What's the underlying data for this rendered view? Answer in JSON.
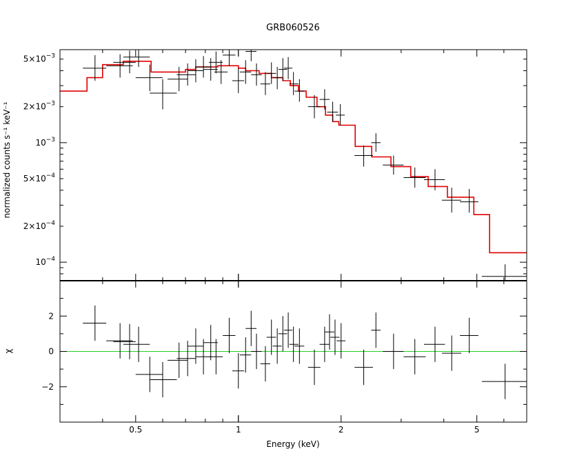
{
  "chart_data": [
    {
      "id": "spectrum",
      "type": "scatter",
      "title": "GRB060526",
      "xlabel": "",
      "ylabel": "normalized counts s⁻¹ keV⁻¹",
      "x_scale": "log",
      "y_scale": "log",
      "xlim": [
        0.3,
        7
      ],
      "ylim": [
        7e-05,
        0.006
      ],
      "y_ticks": [
        {
          "value": 0.005,
          "mant": "5×10",
          "exp": "−3"
        },
        {
          "value": 0.002,
          "mant": "2×10",
          "exp": "−3"
        },
        {
          "value": 0.001,
          "mant": "10",
          "exp": "−3"
        },
        {
          "value": 0.0005,
          "mant": "5×10",
          "exp": "−4"
        },
        {
          "value": 0.0002,
          "mant": "2×10",
          "exp": "−4"
        },
        {
          "value": 0.0001,
          "mant": "10",
          "exp": "−4"
        }
      ],
      "data": [
        {
          "x": 0.38,
          "xlo": 0.35,
          "xhi": 0.41,
          "y": 0.0042,
          "ylo": 0.0033,
          "yhi": 0.0054
        },
        {
          "x": 0.45,
          "xlo": 0.41,
          "xhi": 0.49,
          "y": 0.0044,
          "ylo": 0.0035,
          "yhi": 0.0055
        },
        {
          "x": 0.48,
          "xlo": 0.43,
          "xhi": 0.5,
          "y": 0.0047,
          "ylo": 0.0038,
          "yhi": 0.0059
        },
        {
          "x": 0.51,
          "xlo": 0.46,
          "xhi": 0.55,
          "y": 0.0052,
          "ylo": 0.0043,
          "yhi": 0.0063
        },
        {
          "x": 0.55,
          "xlo": 0.5,
          "xhi": 0.6,
          "y": 0.0035,
          "ylo": 0.0027,
          "yhi": 0.0045
        },
        {
          "x": 0.6,
          "xlo": 0.55,
          "xhi": 0.66,
          "y": 0.0026,
          "ylo": 0.0019,
          "yhi": 0.0034
        },
        {
          "x": 0.67,
          "xlo": 0.62,
          "xhi": 0.71,
          "y": 0.0034,
          "ylo": 0.0027,
          "yhi": 0.0043
        },
        {
          "x": 0.71,
          "xlo": 0.66,
          "xhi": 0.75,
          "y": 0.0037,
          "ylo": 0.003,
          "yhi": 0.0046
        },
        {
          "x": 0.75,
          "xlo": 0.71,
          "xhi": 0.79,
          "y": 0.004,
          "ylo": 0.0032,
          "yhi": 0.005
        },
        {
          "x": 0.79,
          "xlo": 0.75,
          "xhi": 0.83,
          "y": 0.0043,
          "ylo": 0.0035,
          "yhi": 0.0053
        },
        {
          "x": 0.83,
          "xlo": 0.79,
          "xhi": 0.87,
          "y": 0.0041,
          "ylo": 0.0033,
          "yhi": 0.0051
        },
        {
          "x": 0.86,
          "xlo": 0.82,
          "xhi": 0.9,
          "y": 0.0047,
          "ylo": 0.0038,
          "yhi": 0.0058
        },
        {
          "x": 0.89,
          "xlo": 0.85,
          "xhi": 0.93,
          "y": 0.0039,
          "ylo": 0.0031,
          "yhi": 0.0049
        },
        {
          "x": 0.94,
          "xlo": 0.9,
          "xhi": 0.98,
          "y": 0.0054,
          "ylo": 0.0044,
          "yhi": 0.0066
        },
        {
          "x": 1.0,
          "xlo": 0.96,
          "xhi": 1.04,
          "y": 0.0033,
          "ylo": 0.0026,
          "yhi": 0.0042
        },
        {
          "x": 1.05,
          "xlo": 1.01,
          "xhi": 1.09,
          "y": 0.0039,
          "ylo": 0.0031,
          "yhi": 0.0049
        },
        {
          "x": 1.09,
          "xlo": 1.05,
          "xhi": 1.13,
          "y": 0.0058,
          "ylo": 0.0048,
          "yhi": 0.0069
        },
        {
          "x": 1.13,
          "xlo": 1.09,
          "xhi": 1.17,
          "y": 0.0037,
          "ylo": 0.003,
          "yhi": 0.0046
        },
        {
          "x": 1.2,
          "xlo": 1.16,
          "xhi": 1.24,
          "y": 0.0031,
          "ylo": 0.0025,
          "yhi": 0.0039
        },
        {
          "x": 1.25,
          "xlo": 1.21,
          "xhi": 1.29,
          "y": 0.0038,
          "ylo": 0.0031,
          "yhi": 0.0047
        },
        {
          "x": 1.3,
          "xlo": 1.26,
          "xhi": 1.34,
          "y": 0.0035,
          "ylo": 0.0028,
          "yhi": 0.0043
        },
        {
          "x": 1.35,
          "xlo": 1.31,
          "xhi": 1.39,
          "y": 0.0041,
          "ylo": 0.0033,
          "yhi": 0.0051
        },
        {
          "x": 1.4,
          "xlo": 1.36,
          "xhi": 1.44,
          "y": 0.0042,
          "ylo": 0.0034,
          "yhi": 0.0052
        },
        {
          "x": 1.45,
          "xlo": 1.41,
          "xhi": 1.5,
          "y": 0.0031,
          "ylo": 0.0025,
          "yhi": 0.0039
        },
        {
          "x": 1.51,
          "xlo": 1.46,
          "xhi": 1.56,
          "y": 0.0027,
          "ylo": 0.0022,
          "yhi": 0.0034
        },
        {
          "x": 1.67,
          "xlo": 1.6,
          "xhi": 1.74,
          "y": 0.002,
          "ylo": 0.0016,
          "yhi": 0.0025
        },
        {
          "x": 1.79,
          "xlo": 1.73,
          "xhi": 1.85,
          "y": 0.0023,
          "ylo": 0.0019,
          "yhi": 0.0028
        },
        {
          "x": 1.89,
          "xlo": 1.82,
          "xhi": 1.96,
          "y": 0.0018,
          "ylo": 0.0015,
          "yhi": 0.0022
        },
        {
          "x": 1.99,
          "xlo": 1.93,
          "xhi": 2.05,
          "y": 0.0017,
          "ylo": 0.0014,
          "yhi": 0.0021
        },
        {
          "x": 2.33,
          "xlo": 2.19,
          "xhi": 2.48,
          "y": 0.00078,
          "ylo": 0.00063,
          "yhi": 0.00095
        },
        {
          "x": 2.53,
          "xlo": 2.45,
          "xhi": 2.61,
          "y": 0.001,
          "ylo": 0.00084,
          "yhi": 0.0012
        },
        {
          "x": 2.85,
          "xlo": 2.65,
          "xhi": 3.05,
          "y": 0.00065,
          "ylo": 0.00054,
          "yhi": 0.00078
        },
        {
          "x": 3.29,
          "xlo": 3.05,
          "xhi": 3.54,
          "y": 0.00051,
          "ylo": 0.00042,
          "yhi": 0.00062
        },
        {
          "x": 3.77,
          "xlo": 3.5,
          "xhi": 4.03,
          "y": 0.00049,
          "ylo": 0.0004,
          "yhi": 0.0006
        },
        {
          "x": 4.22,
          "xlo": 3.95,
          "xhi": 4.5,
          "y": 0.00033,
          "ylo": 0.00026,
          "yhi": 0.00042
        },
        {
          "x": 4.75,
          "xlo": 4.46,
          "xhi": 5.05,
          "y": 0.00032,
          "ylo": 0.00026,
          "yhi": 0.00041
        },
        {
          "x": 6.05,
          "xlo": 5.17,
          "xhi": 7.0,
          "y": 7.6e-05,
          "ylo": 6e-05,
          "yhi": 9.6e-05
        }
      ],
      "model_color": "#e00000",
      "model_steps": [
        {
          "x0": 0.3,
          "x1": 0.36,
          "y": 0.0027
        },
        {
          "x0": 0.36,
          "x1": 0.4,
          "y": 0.0035
        },
        {
          "x0": 0.4,
          "x1": 0.46,
          "y": 0.0045
        },
        {
          "x0": 0.46,
          "x1": 0.555,
          "y": 0.0048
        },
        {
          "x0": 0.555,
          "x1": 0.7,
          "y": 0.0039
        },
        {
          "x0": 0.7,
          "x1": 0.75,
          "y": 0.0041
        },
        {
          "x0": 0.75,
          "x1": 0.87,
          "y": 0.0043
        },
        {
          "x0": 0.87,
          "x1": 1.0,
          "y": 0.0044
        },
        {
          "x0": 1.0,
          "x1": 1.05,
          "y": 0.0042
        },
        {
          "x0": 1.05,
          "x1": 1.15,
          "y": 0.004
        },
        {
          "x0": 1.15,
          "x1": 1.25,
          "y": 0.0038
        },
        {
          "x0": 1.25,
          "x1": 1.35,
          "y": 0.0035
        },
        {
          "x0": 1.35,
          "x1": 1.42,
          "y": 0.0033
        },
        {
          "x0": 1.42,
          "x1": 1.5,
          "y": 0.003
        },
        {
          "x0": 1.5,
          "x1": 1.58,
          "y": 0.0027
        },
        {
          "x0": 1.58,
          "x1": 1.7,
          "y": 0.0024
        },
        {
          "x0": 1.7,
          "x1": 1.8,
          "y": 0.002
        },
        {
          "x0": 1.8,
          "x1": 1.89,
          "y": 0.0017
        },
        {
          "x0": 1.89,
          "x1": 1.97,
          "y": 0.0015
        },
        {
          "x0": 1.97,
          "x1": 2.2,
          "y": 0.0014
        },
        {
          "x0": 2.2,
          "x1": 2.46,
          "y": 0.00093
        },
        {
          "x0": 2.46,
          "x1": 2.8,
          "y": 0.00076
        },
        {
          "x0": 2.8,
          "x1": 3.2,
          "y": 0.00063
        },
        {
          "x0": 3.2,
          "x1": 3.6,
          "y": 0.00052
        },
        {
          "x0": 3.6,
          "x1": 4.1,
          "y": 0.00043
        },
        {
          "x0": 4.1,
          "x1": 4.9,
          "y": 0.00035
        },
        {
          "x0": 4.9,
          "x1": 5.45,
          "y": 0.00025
        },
        {
          "x0": 5.45,
          "x1": 7.0,
          "y": 0.00012
        }
      ]
    },
    {
      "id": "residuals",
      "type": "scatter",
      "title": "",
      "xlabel": "Energy (keV)",
      "ylabel": "χ",
      "x_scale": "log",
      "y_scale": "linear",
      "xlim": [
        0.3,
        7
      ],
      "ylim": [
        -4,
        4
      ],
      "x_ticks": [
        {
          "value": 0.5,
          "label": "0.5"
        },
        {
          "value": 1,
          "label": "1"
        },
        {
          "value": 2,
          "label": "2"
        },
        {
          "value": 5,
          "label": "5"
        }
      ],
      "y_ticks": [
        {
          "value": 2,
          "label": "2"
        },
        {
          "value": 0,
          "label": "0"
        },
        {
          "value": -2,
          "label": "−2"
        }
      ],
      "zero_line_color": "#22cc22",
      "data": [
        {
          "x": 0.38,
          "xlo": 0.35,
          "xhi": 0.41,
          "y": 1.6,
          "ylo": 0.6,
          "yhi": 2.6
        },
        {
          "x": 0.45,
          "xlo": 0.41,
          "xhi": 0.49,
          "y": 0.6,
          "ylo": -0.4,
          "yhi": 1.6
        },
        {
          "x": 0.48,
          "xlo": 0.43,
          "xhi": 0.5,
          "y": 0.55,
          "ylo": -0.45,
          "yhi": 1.55
        },
        {
          "x": 0.51,
          "xlo": 0.46,
          "xhi": 0.55,
          "y": 0.4,
          "ylo": -0.6,
          "yhi": 1.4
        },
        {
          "x": 0.55,
          "xlo": 0.5,
          "xhi": 0.6,
          "y": -1.3,
          "ylo": -2.3,
          "yhi": -0.3
        },
        {
          "x": 0.6,
          "xlo": 0.55,
          "xhi": 0.66,
          "y": -1.6,
          "ylo": -2.6,
          "yhi": -0.6
        },
        {
          "x": 0.67,
          "xlo": 0.62,
          "xhi": 0.71,
          "y": -0.5,
          "ylo": -1.5,
          "yhi": 0.5
        },
        {
          "x": 0.71,
          "xlo": 0.66,
          "xhi": 0.75,
          "y": -0.4,
          "ylo": -1.4,
          "yhi": 0.6
        },
        {
          "x": 0.75,
          "xlo": 0.71,
          "xhi": 0.79,
          "y": 0.3,
          "ylo": -0.7,
          "yhi": 1.3
        },
        {
          "x": 0.79,
          "xlo": 0.75,
          "xhi": 0.83,
          "y": -0.3,
          "ylo": -1.3,
          "yhi": 0.7
        },
        {
          "x": 0.83,
          "xlo": 0.79,
          "xhi": 0.87,
          "y": 0.5,
          "ylo": -0.5,
          "yhi": 1.5
        },
        {
          "x": 0.86,
          "xlo": 0.82,
          "xhi": 0.9,
          "y": -0.3,
          "ylo": -1.3,
          "yhi": 0.7
        },
        {
          "x": 0.94,
          "xlo": 0.9,
          "xhi": 0.98,
          "y": 0.9,
          "ylo": -0.1,
          "yhi": 1.9
        },
        {
          "x": 1.0,
          "xlo": 0.96,
          "xhi": 1.04,
          "y": -1.1,
          "ylo": -2.1,
          "yhi": -0.1
        },
        {
          "x": 1.05,
          "xlo": 1.01,
          "xhi": 1.09,
          "y": -0.2,
          "ylo": -1.2,
          "yhi": 0.8
        },
        {
          "x": 1.09,
          "xlo": 1.05,
          "xhi": 1.13,
          "y": 1.3,
          "ylo": 0.3,
          "yhi": 2.3
        },
        {
          "x": 1.13,
          "xlo": 1.09,
          "xhi": 1.17,
          "y": 0.0,
          "ylo": -1.0,
          "yhi": 1.0
        },
        {
          "x": 1.2,
          "xlo": 1.16,
          "xhi": 1.24,
          "y": -0.7,
          "ylo": -1.7,
          "yhi": 0.3
        },
        {
          "x": 1.25,
          "xlo": 1.21,
          "xhi": 1.29,
          "y": 0.8,
          "ylo": -0.2,
          "yhi": 1.8
        },
        {
          "x": 1.3,
          "xlo": 1.26,
          "xhi": 1.34,
          "y": 0.3,
          "ylo": -0.7,
          "yhi": 1.3
        },
        {
          "x": 1.35,
          "xlo": 1.31,
          "xhi": 1.39,
          "y": 1.0,
          "ylo": 0.0,
          "yhi": 2.0
        },
        {
          "x": 1.4,
          "xlo": 1.36,
          "xhi": 1.44,
          "y": 1.2,
          "ylo": 0.2,
          "yhi": 2.2
        },
        {
          "x": 1.45,
          "xlo": 1.41,
          "xhi": 1.5,
          "y": 0.4,
          "ylo": -0.6,
          "yhi": 1.4
        },
        {
          "x": 1.51,
          "xlo": 1.46,
          "xhi": 1.56,
          "y": 0.3,
          "ylo": -0.7,
          "yhi": 1.3
        },
        {
          "x": 1.67,
          "xlo": 1.6,
          "xhi": 1.74,
          "y": -0.9,
          "ylo": -1.9,
          "yhi": 0.1
        },
        {
          "x": 1.79,
          "xlo": 1.73,
          "xhi": 1.85,
          "y": 0.4,
          "ylo": -0.6,
          "yhi": 1.4
        },
        {
          "x": 1.85,
          "xlo": 1.79,
          "xhi": 1.91,
          "y": 1.1,
          "ylo": 0.1,
          "yhi": 2.1
        },
        {
          "x": 1.92,
          "xlo": 1.86,
          "xhi": 1.98,
          "y": 0.8,
          "ylo": -0.2,
          "yhi": 1.8
        },
        {
          "x": 2.0,
          "xlo": 1.94,
          "xhi": 2.06,
          "y": 0.6,
          "ylo": -0.4,
          "yhi": 1.6
        },
        {
          "x": 2.33,
          "xlo": 2.19,
          "xhi": 2.48,
          "y": -0.9,
          "ylo": -1.9,
          "yhi": 0.1
        },
        {
          "x": 2.53,
          "xlo": 2.45,
          "xhi": 2.61,
          "y": 1.2,
          "ylo": 0.2,
          "yhi": 2.2
        },
        {
          "x": 2.85,
          "xlo": 2.65,
          "xhi": 3.05,
          "y": 0.0,
          "ylo": -1.0,
          "yhi": 1.0
        },
        {
          "x": 3.29,
          "xlo": 3.05,
          "xhi": 3.54,
          "y": -0.3,
          "ylo": -1.3,
          "yhi": 0.7
        },
        {
          "x": 3.77,
          "xlo": 3.5,
          "xhi": 4.03,
          "y": 0.4,
          "ylo": -0.6,
          "yhi": 1.4
        },
        {
          "x": 4.22,
          "xlo": 3.95,
          "xhi": 4.5,
          "y": -0.1,
          "ylo": -1.1,
          "yhi": 0.9
        },
        {
          "x": 4.75,
          "xlo": 4.46,
          "xhi": 5.05,
          "y": 0.9,
          "ylo": -0.1,
          "yhi": 1.9
        },
        {
          "x": 6.05,
          "xlo": 5.17,
          "xhi": 7.0,
          "y": -1.7,
          "ylo": -2.7,
          "yhi": -0.7
        }
      ]
    }
  ]
}
